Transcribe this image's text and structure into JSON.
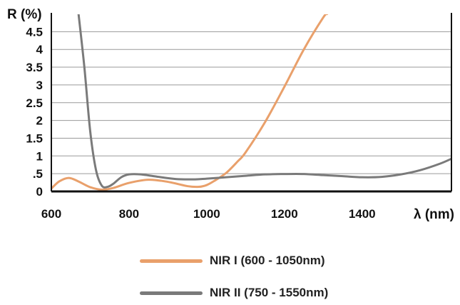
{
  "chart_data": {
    "type": "line",
    "ylabel": "R (%)",
    "xlabel": "λ (nm)",
    "xlim": [
      600,
      1630
    ],
    "ylim": [
      0,
      4.95
    ],
    "x_ticks": [
      600,
      800,
      1000,
      1200,
      1400
    ],
    "x_tick_labels": [
      "600",
      "800",
      "1000",
      "1200",
      "1400"
    ],
    "y_ticks": [
      0,
      0.5,
      1,
      1.5,
      2,
      2.5,
      3,
      3.5,
      4,
      4.5
    ],
    "y_tick_labels": [
      "0",
      ".5",
      "1",
      "1.5",
      "2",
      "2.5",
      "3",
      "3.5",
      "4",
      "4.5"
    ],
    "grid": "horizontal",
    "legend_position": "bottom",
    "series": [
      {
        "name": "NIR I (600 - 1050nm)",
        "color": "#E9A06B",
        "x": [
          600,
          620,
          645,
          670,
          700,
          730,
          760,
          800,
          850,
          900,
          950,
          980,
          1000,
          1020,
          1050,
          1080,
          1100,
          1150,
          1200,
          1250,
          1300,
          1310
        ],
        "y": [
          0.08,
          0.28,
          0.38,
          0.28,
          0.12,
          0.05,
          0.1,
          0.24,
          0.33,
          0.27,
          0.15,
          0.13,
          0.18,
          0.3,
          0.52,
          0.85,
          1.1,
          1.95,
          2.95,
          4.0,
          4.9,
          5.0
        ]
      },
      {
        "name": "NIR II (750 - 1550nm)",
        "color": "#7A7A7A",
        "x": [
          670,
          685,
          700,
          715,
          730,
          745,
          760,
          780,
          800,
          830,
          870,
          920,
          970,
          1000,
          1050,
          1100,
          1150,
          1200,
          1250,
          1300,
          1350,
          1400,
          1450,
          1500,
          1550,
          1600,
          1630
        ],
        "y": [
          5.0,
          3.5,
          1.7,
          0.6,
          0.16,
          0.13,
          0.22,
          0.4,
          0.48,
          0.48,
          0.42,
          0.35,
          0.34,
          0.36,
          0.4,
          0.44,
          0.48,
          0.49,
          0.49,
          0.46,
          0.43,
          0.4,
          0.41,
          0.48,
          0.6,
          0.78,
          0.92
        ]
      }
    ]
  }
}
